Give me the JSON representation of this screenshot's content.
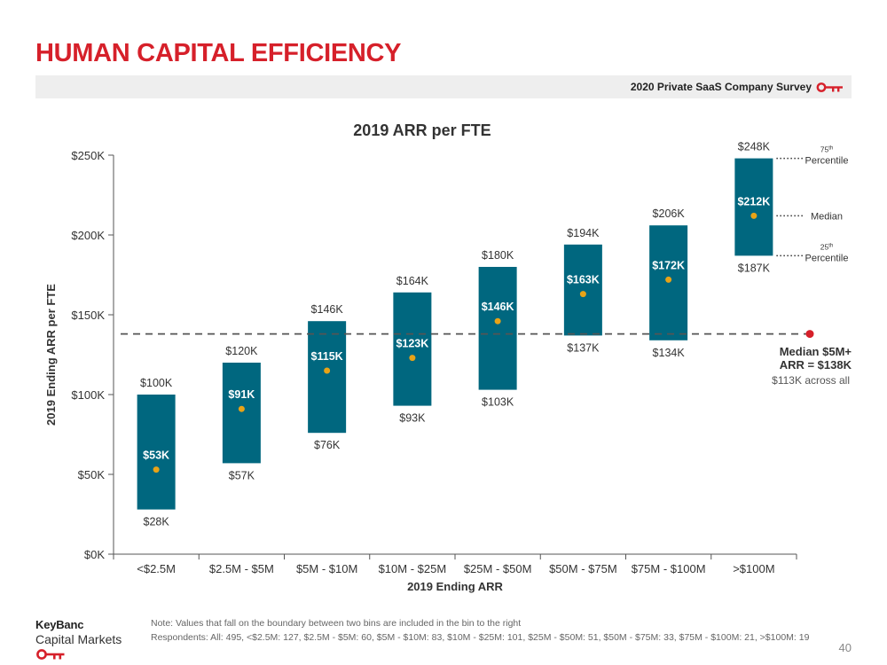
{
  "page": {
    "title": "HUMAN CAPITAL EFFICIENCY",
    "survey": "2020 Private SaaS Company Survey",
    "logo_name": "KeyBanc",
    "logo_sub": "Capital Markets",
    "note": "Note: Values that fall on the boundary between two bins are included in the bin to the right",
    "respondents": "Respondents: All: 495, <$2.5M: 127, $2.5M - $5M: 60, $5M - $10M: 83, $10M - $25M: 101, $25M - $50M: 51, $50M - $75M: 33, $75M - $100M: 21, >$100M: 19",
    "page_number": "40",
    "accent_color": "#d6202a"
  },
  "chart_data": {
    "type": "bar",
    "title": "2019 ARR per FTE",
    "xlabel": "2019 Ending ARR",
    "ylabel": "2019 Ending ARR per FTE",
    "ylim": [
      0,
      250
    ],
    "yticks": [
      0,
      50,
      100,
      150,
      200,
      250
    ],
    "ytick_labels": [
      "$0K",
      "$50K",
      "$100K",
      "$150K",
      "$200K",
      "$250K"
    ],
    "categories": [
      "<$2.5M",
      "$2.5M - $5M",
      "$5M - $10M",
      "$10M - $25M",
      "$25M - $50M",
      "$50M - $75M",
      "$75M - $100M",
      ">$100M"
    ],
    "p25": [
      28,
      57,
      76,
      93,
      103,
      137,
      134,
      187
    ],
    "median": [
      53,
      91,
      115,
      123,
      146,
      163,
      172,
      212
    ],
    "p75": [
      100,
      120,
      146,
      164,
      180,
      194,
      206,
      248
    ],
    "p25_labels": [
      "$28K",
      "$57K",
      "$76K",
      "$93K",
      "$103K",
      "$137K",
      "$134K",
      "$187K"
    ],
    "median_labels": [
      "$53K",
      "$91K",
      "$115K",
      "$123K",
      "$146K",
      "$163K",
      "$172K",
      "$212K"
    ],
    "p75_labels": [
      "$100K",
      "$120K",
      "$146K",
      "$164K",
      "$180K",
      "$194K",
      "$206K",
      "$248K"
    ],
    "reference_line": {
      "value": 138,
      "label_line1": "Median $5M+",
      "label_line2": "ARR = $138K",
      "sublabel": "$113K across all"
    },
    "legend": {
      "p75_main": "75",
      "p75_sup": "th",
      "p75_word": "Percentile",
      "median": "Median",
      "p25_main": "25",
      "p25_sup": "th",
      "p25_word": "Percentile"
    },
    "colors": {
      "bar": "#00677f",
      "median_dot": "#e8a317",
      "reference_line": "#555555",
      "reference_dot": "#d6202a"
    }
  }
}
